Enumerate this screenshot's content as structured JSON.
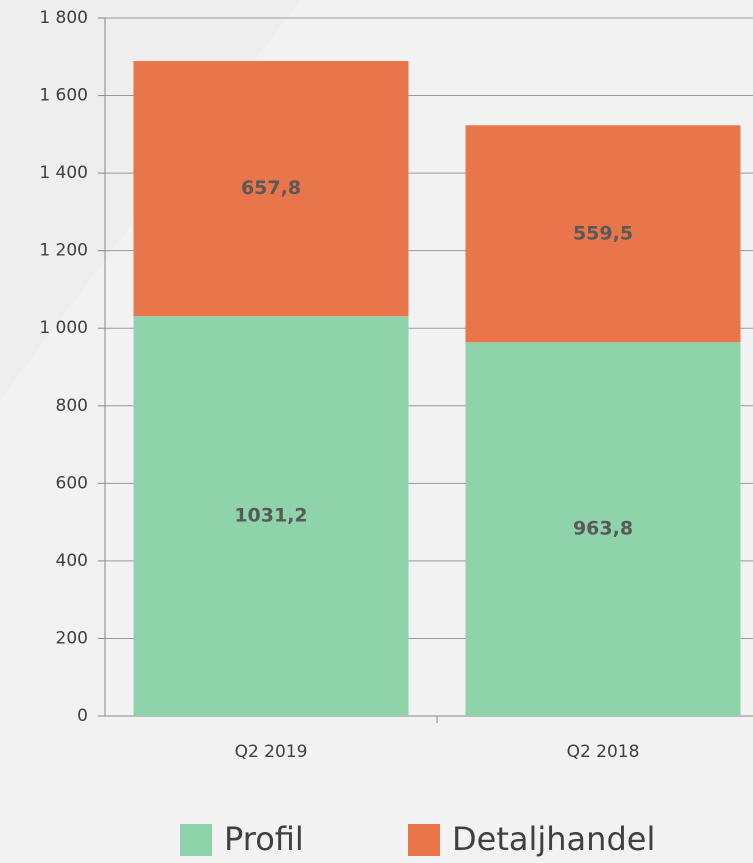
{
  "chart_data": {
    "type": "stacked_bar",
    "categories": [
      "Q2 2019",
      "Q2 2018"
    ],
    "series": [
      {
        "name": "Profil",
        "color": "#8fd3aa",
        "values": [
          1031.2,
          963.8
        ],
        "value_labels": [
          "1031,2",
          "963,8"
        ]
      },
      {
        "name": "Detaljhandel",
        "color": "#e8764a",
        "values": [
          657.8,
          559.5
        ],
        "value_labels": [
          "657,8",
          "559,5"
        ]
      }
    ],
    "ylim": [
      0,
      1800
    ],
    "yticks": [
      0,
      200,
      400,
      600,
      800,
      {
        "value": 1000,
        "label": "1 000"
      },
      {
        "value": 1200,
        "label": "1 200"
      },
      {
        "value": 1400,
        "label": "1 400"
      },
      {
        "value": 1600,
        "label": "1 600"
      },
      {
        "value": 1800,
        "label": "1 800"
      }
    ],
    "grid": true,
    "legend": "bottom"
  }
}
